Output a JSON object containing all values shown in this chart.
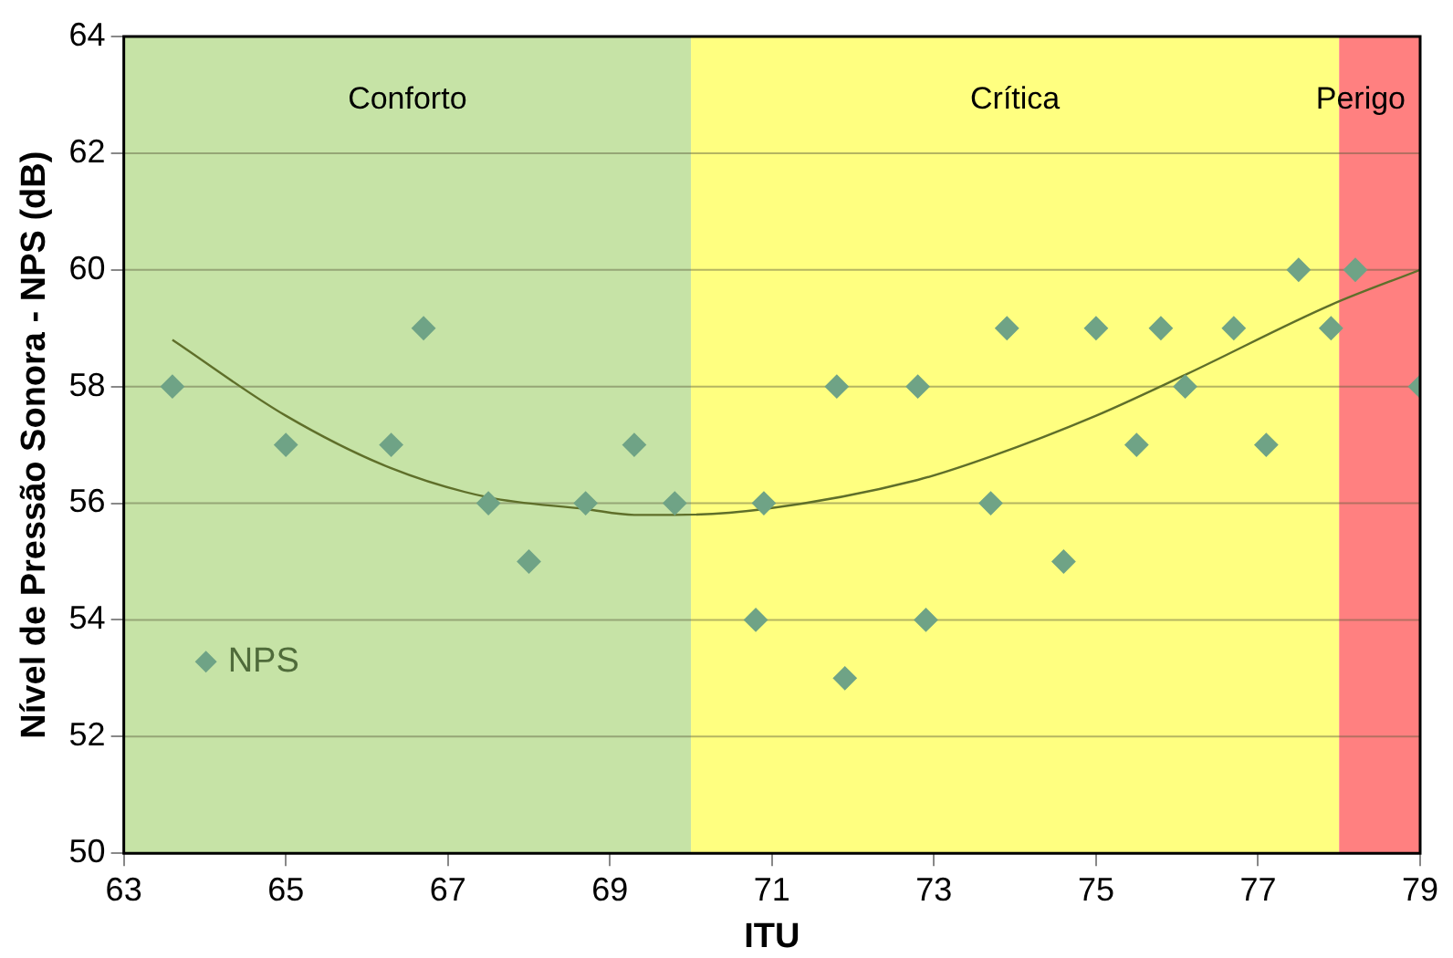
{
  "chart_data": {
    "type": "scatter",
    "xlabel": "ITU",
    "ylabel": "Nível de Pressão Sonora - NPS (dB)",
    "xlim": [
      63,
      79
    ],
    "xticks": [
      63,
      65,
      67,
      69,
      71,
      73,
      75,
      77,
      79
    ],
    "ylim": [
      50,
      64
    ],
    "yticks": [
      50,
      52,
      54,
      56,
      58,
      60,
      62,
      64
    ],
    "grid": "y",
    "legend": "bottom left",
    "marker": "diamond",
    "bands": [
      {
        "axis": "x",
        "from": 63,
        "to": 70,
        "label": "Conforto",
        "color": "#c6e3a6"
      },
      {
        "axis": "x",
        "from": 70,
        "to": 78,
        "label": "Crítica",
        "color": "#ffff80"
      },
      {
        "axis": "x",
        "from": 78,
        "to": 79,
        "label": "Perigo",
        "color": "#ff8080"
      }
    ],
    "series": [
      {
        "name": "NPS",
        "type": "scatter",
        "color": "#6fa386",
        "x": [
          63.6,
          65.0,
          66.3,
          66.7,
          67.5,
          68.0,
          68.7,
          69.3,
          69.8,
          70.8,
          70.9,
          71.8,
          71.9,
          72.8,
          72.9,
          73.7,
          73.9,
          74.6,
          75.0,
          75.5,
          75.8,
          76.1,
          76.7,
          77.1,
          77.5,
          77.9,
          78.2,
          79
        ],
        "values": [
          58,
          57,
          57,
          59,
          56,
          55,
          56,
          57,
          56,
          54,
          56,
          58,
          53,
          58,
          54,
          56,
          59,
          55,
          59,
          57,
          59,
          58,
          59,
          57,
          60,
          59,
          60,
          58
        ]
      },
      {
        "type": "line",
        "color": "#5f6f2a",
        "marker": "none",
        "x": [
          63.6,
          65.0,
          66.3,
          67.5,
          68.7,
          69.3,
          69.8,
          70.9,
          72.8,
          73.7,
          75.0,
          76.1,
          77.9,
          79
        ],
        "values": [
          58.8,
          57.5,
          56.6,
          56.1,
          55.9,
          55.8,
          55.8,
          55.9,
          56.4,
          56.8,
          57.5,
          58.2,
          59.4,
          60.0
        ]
      }
    ]
  }
}
